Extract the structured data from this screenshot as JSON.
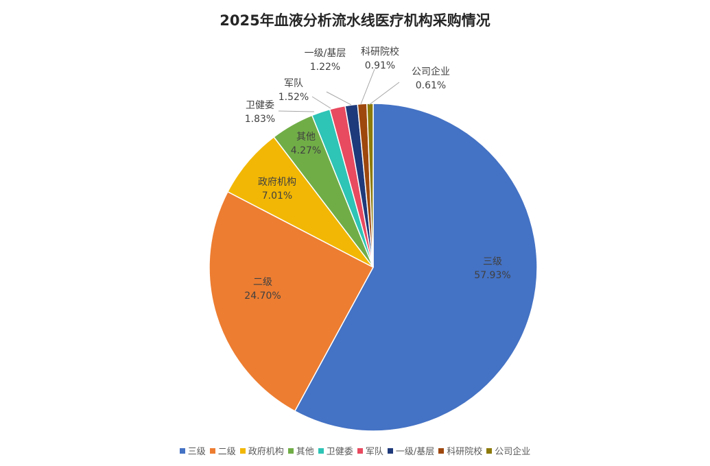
{
  "chart_data": {
    "type": "pie",
    "title": "2025年血液分析流水线医疗机构采购情况",
    "slices": [
      {
        "label": "三级",
        "value": 57.93,
        "display": "57.93%",
        "color": "#4472C4"
      },
      {
        "label": "二级",
        "value": 24.7,
        "display": "24.70%",
        "color": "#ED7D31"
      },
      {
        "label": "政府机构",
        "value": 7.01,
        "display": "7.01%",
        "color": "#F2B705"
      },
      {
        "label": "其他",
        "value": 4.27,
        "display": "4.27%",
        "color": "#70AD47"
      },
      {
        "label": "卫健委",
        "value": 1.83,
        "display": "1.83%",
        "color": "#2EC4B6"
      },
      {
        "label": "军队",
        "value": 1.52,
        "display": "1.52%",
        "color": "#E84A5F"
      },
      {
        "label": "一级/基层",
        "value": 1.22,
        "display": "1.22%",
        "color": "#1F3A7A"
      },
      {
        "label": "科研院校",
        "value": 0.91,
        "display": "0.91%",
        "color": "#9E480E"
      },
      {
        "label": "公司企业",
        "value": 0.61,
        "display": "0.61%",
        "color": "#8C7A0A"
      }
    ],
    "legend_position": "bottom"
  }
}
